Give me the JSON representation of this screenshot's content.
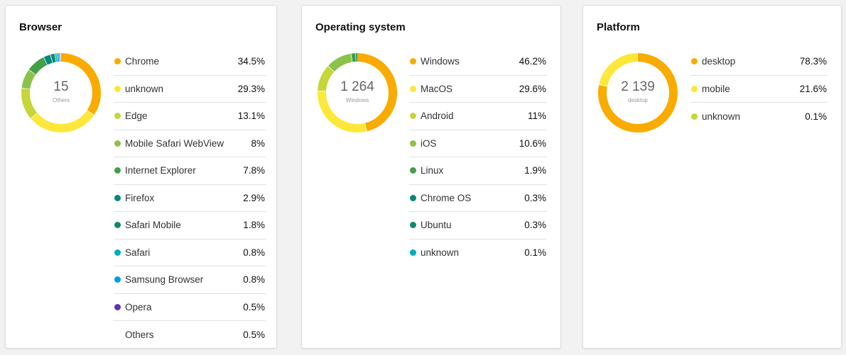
{
  "cards": [
    {
      "title": "Browser",
      "center_value": "15",
      "center_label": "Others",
      "items": [
        {
          "label": "Chrome",
          "pct": "34.5%",
          "value": 34.5,
          "color": "#f9ab00"
        },
        {
          "label": "unknown",
          "pct": "29.3%",
          "value": 29.3,
          "color": "#fde73a"
        },
        {
          "label": "Edge",
          "pct": "13.1%",
          "value": 13.1,
          "color": "#c6d639"
        },
        {
          "label": "Mobile Safari WebView",
          "pct": "8%",
          "value": 8,
          "color": "#8bc34a"
        },
        {
          "label": "Internet Explorer",
          "pct": "7.8%",
          "value": 7.8,
          "color": "#43a047"
        },
        {
          "label": "Firefox",
          "pct": "2.9%",
          "value": 2.9,
          "color": "#00897b"
        },
        {
          "label": "Safari Mobile",
          "pct": "1.8%",
          "value": 1.8,
          "color": "#0e8a6e"
        },
        {
          "label": "Safari",
          "pct": "0.8%",
          "value": 0.8,
          "color": "#00acc1"
        },
        {
          "label": "Samsung Browser",
          "pct": "0.8%",
          "value": 0.8,
          "color": "#039be5"
        },
        {
          "label": "Opera",
          "pct": "0.5%",
          "value": 0.5,
          "color": "#5e35b1"
        },
        {
          "label": "Others",
          "pct": "0.5%",
          "value": 0.5,
          "color": ""
        }
      ]
    },
    {
      "title": "Operating system",
      "center_value": "1 264",
      "center_label": "Windows",
      "items": [
        {
          "label": "Windows",
          "pct": "46.2%",
          "value": 46.2,
          "color": "#f9ab00"
        },
        {
          "label": "MacOS",
          "pct": "29.6%",
          "value": 29.6,
          "color": "#fde73a"
        },
        {
          "label": "Android",
          "pct": "11%",
          "value": 11,
          "color": "#c6d639"
        },
        {
          "label": "iOS",
          "pct": "10.6%",
          "value": 10.6,
          "color": "#8bc34a"
        },
        {
          "label": "Linux",
          "pct": "1.9%",
          "value": 1.9,
          "color": "#43a047"
        },
        {
          "label": "Chrome OS",
          "pct": "0.3%",
          "value": 0.3,
          "color": "#00897b"
        },
        {
          "label": "Ubuntu",
          "pct": "0.3%",
          "value": 0.3,
          "color": "#0e8a6e"
        },
        {
          "label": "unknown",
          "pct": "0.1%",
          "value": 0.1,
          "color": "#00acc1"
        }
      ]
    },
    {
      "title": "Platform",
      "center_value": "2 139",
      "center_label": "desktop",
      "items": [
        {
          "label": "desktop",
          "pct": "78.3%",
          "value": 78.3,
          "color": "#f9ab00"
        },
        {
          "label": "mobile",
          "pct": "21.6%",
          "value": 21.6,
          "color": "#fde73a"
        },
        {
          "label": "unknown",
          "pct": "0.1%",
          "value": 0.1,
          "color": "#c6d639"
        }
      ]
    }
  ]
}
